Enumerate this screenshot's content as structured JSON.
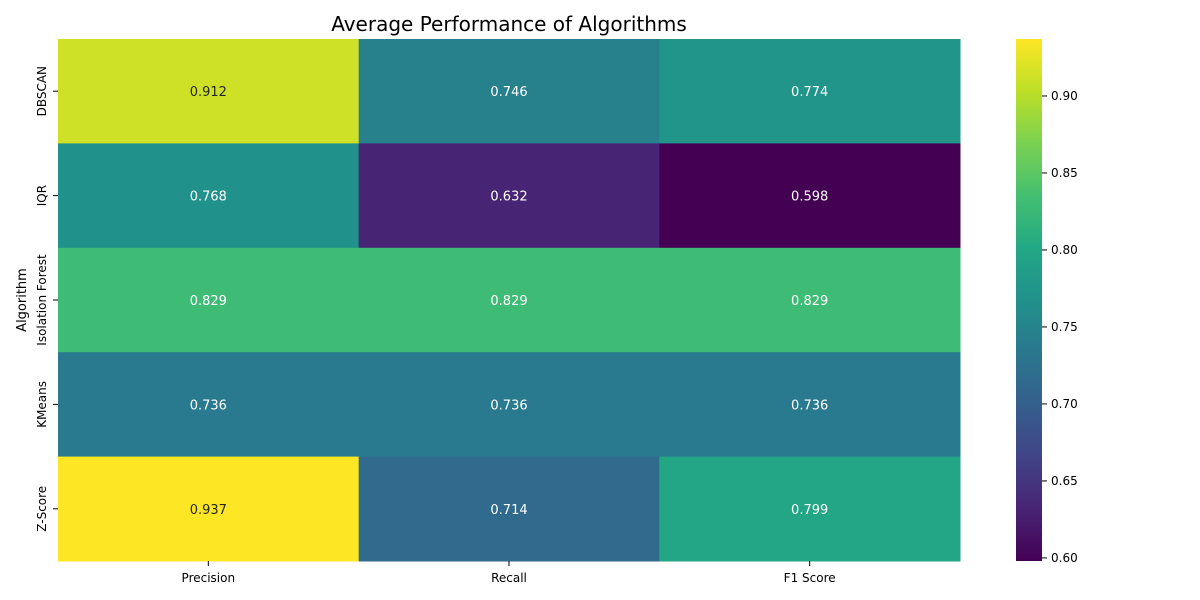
{
  "chart_data": {
    "type": "heatmap",
    "title": "Average Performance of Algorithms",
    "xlabel": "",
    "ylabel": "Algorithm",
    "columns": [
      "Precision",
      "Recall",
      "F1 Score"
    ],
    "rows": [
      "DBSCAN",
      "IQR",
      "Isolation Forest",
      "KMeans",
      "Z-Score"
    ],
    "values": [
      [
        0.912,
        0.746,
        0.774
      ],
      [
        0.768,
        0.632,
        0.598
      ],
      [
        0.829,
        0.829,
        0.829
      ],
      [
        0.736,
        0.736,
        0.736
      ],
      [
        0.937,
        0.714,
        0.799
      ]
    ],
    "value_labels": [
      [
        "0.912",
        "0.746",
        "0.774"
      ],
      [
        "0.768",
        "0.632",
        "0.598"
      ],
      [
        "0.829",
        "0.829",
        "0.829"
      ],
      [
        "0.736",
        "0.736",
        "0.736"
      ],
      [
        "0.937",
        "0.714",
        "0.799"
      ]
    ],
    "colormap": "viridis",
    "color_range": [
      0.598,
      0.937
    ],
    "colorbar_ticks": [
      0.6,
      0.65,
      0.7,
      0.75,
      0.8,
      0.85,
      0.9
    ],
    "colorbar_tick_labels": [
      "0.60",
      "0.65",
      "0.70",
      "0.75",
      "0.80",
      "0.85",
      "0.90"
    ],
    "colorbar_placement": "right"
  }
}
